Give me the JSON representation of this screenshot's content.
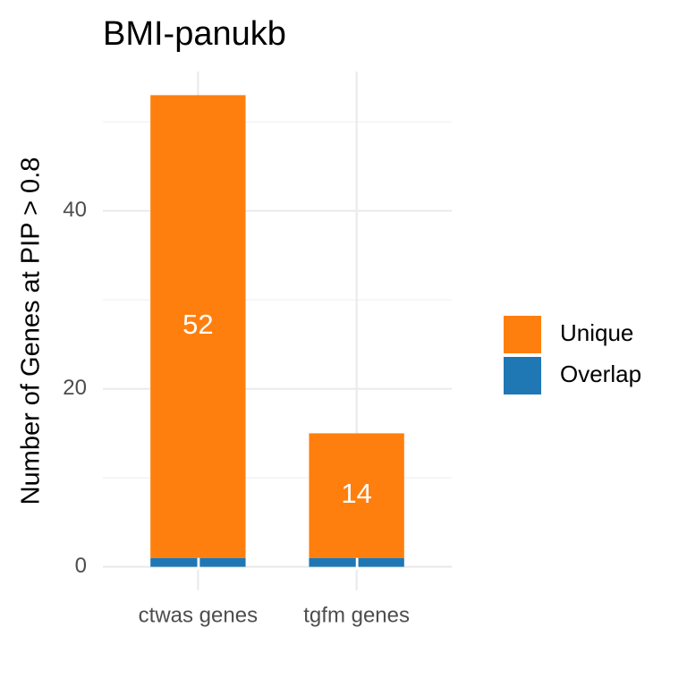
{
  "chart_data": {
    "type": "stacked-bar",
    "title": "BMI-panukb",
    "y_label": "Number of Genes at PIP > 0.8",
    "categories": [
      "ctwas genes",
      "tgfm genes"
    ],
    "series": [
      {
        "name": "Overlap",
        "color": "#1f77b4",
        "values": [
          1,
          1
        ]
      },
      {
        "name": "Unique",
        "color": "#ff7f0e",
        "values": [
          52,
          14
        ]
      }
    ],
    "ylim": [
      -2.65,
      55.65
    ],
    "yticks": [
      0,
      20,
      40
    ],
    "yminor": [
      10,
      30,
      50
    ],
    "grid": true,
    "legend": "right"
  }
}
